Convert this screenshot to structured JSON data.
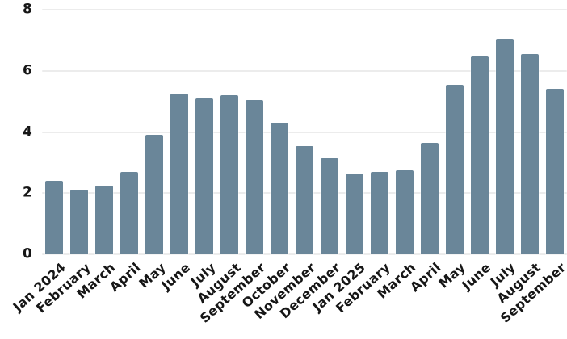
{
  "chart_data": {
    "type": "bar",
    "title": "",
    "xlabel": "",
    "ylabel": "",
    "categories": [
      "Jan 2024",
      "February",
      "March",
      "April",
      "May",
      "June",
      "July",
      "August",
      "September",
      "October",
      "November",
      "December",
      "Jan 2025",
      "February",
      "March",
      "April",
      "May",
      "June",
      "July",
      "August",
      "September"
    ],
    "values": [
      2.4,
      2.1,
      2.25,
      2.7,
      3.9,
      5.25,
      5.1,
      5.2,
      5.05,
      4.3,
      3.55,
      3.15,
      2.65,
      2.7,
      2.75,
      3.65,
      5.55,
      6.5,
      7.05,
      6.55,
      5.4
    ],
    "ylim": [
      0,
      8
    ],
    "yticks": [
      0,
      2,
      4,
      6,
      8
    ],
    "grid": true,
    "legend_position": "none",
    "x_tick_rotation_deg": -42,
    "colors": {
      "bar": "#6A8699",
      "gridline": "#ECECEC",
      "text": "#161616",
      "background": "#FFFFFF"
    }
  }
}
